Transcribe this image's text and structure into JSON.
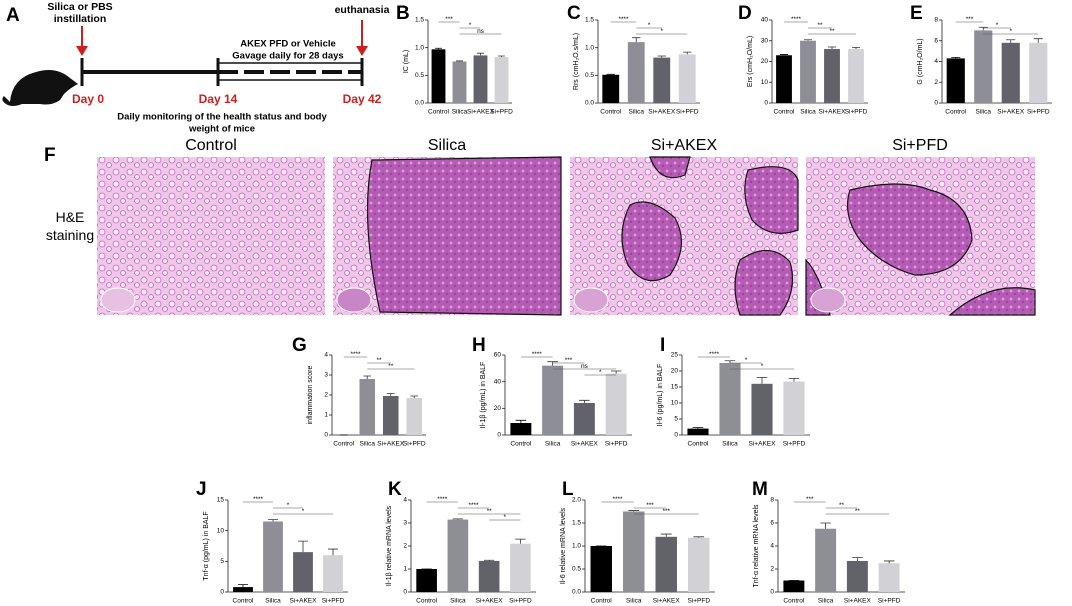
{
  "schematic": {
    "panel": "A",
    "instillation": [
      "Silica or PBS",
      "instillation"
    ],
    "endpoint": "euthanasia",
    "treatment": [
      "AKEX  PFD or Vehicle",
      "Gavage daily for 28 days"
    ],
    "days": [
      "Day 0",
      "Day 14",
      "Day 42"
    ],
    "monitoring": [
      "Daily monitoring of the health status and body",
      "weight of mice"
    ]
  },
  "histology": {
    "panel": "F",
    "groups": [
      "Control",
      "Silica",
      "Si+AKEX",
      "Si+PFD"
    ],
    "stain": "H&E staining"
  },
  "chart_data": [
    {
      "type": "bar",
      "panel": "B",
      "y_label": "IC (mL)",
      "categories": [
        "Control",
        "Silica",
        "Si+AKEX",
        "Si+PFD"
      ],
      "values": [
        0.97,
        0.75,
        0.86,
        0.83
      ],
      "errors": [
        0.02,
        0.01,
        0.04,
        0.02
      ],
      "colors": [
        "#000000",
        "#8e8e96",
        "#62626a",
        "#d2d2d6"
      ],
      "ylim": [
        0,
        1.5
      ],
      "yticks": [
        {
          "value": 0,
          "label": "0.0"
        },
        0.5,
        {
          "value": 1,
          "label": "1.0"
        },
        1.5
      ],
      "significance": [
        "***",
        "*",
        "ns"
      ]
    },
    {
      "type": "bar",
      "panel": "C",
      "y_label": "Rrs (cmH₂O.s/mL)",
      "categories": [
        "Control",
        "Silica",
        "Si+AKEX",
        "Si+PFD"
      ],
      "values": [
        0.51,
        1.1,
        0.82,
        0.88
      ],
      "errors": [
        0.01,
        0.08,
        0.03,
        0.04
      ],
      "colors": [
        "#000000",
        "#8e8e96",
        "#62626a",
        "#d2d2d6"
      ],
      "ylim": [
        0,
        1.5
      ],
      "yticks": [
        {
          "value": 0,
          "label": "0.0"
        },
        0.5,
        {
          "value": 1,
          "label": "1.0"
        },
        1.5
      ],
      "significance": [
        "****",
        "*",
        "*"
      ]
    },
    {
      "type": "bar",
      "panel": "D",
      "y_label": "Ers (cmH₂O/mL)",
      "categories": [
        "Control",
        "Silica",
        "Si+AKEX",
        "Si+PFD"
      ],
      "values": [
        23,
        30,
        26,
        26
      ],
      "errors": [
        0.4,
        0.5,
        1,
        0.8
      ],
      "colors": [
        "#000000",
        "#8e8e96",
        "#62626a",
        "#d2d2d6"
      ],
      "ylim": [
        0,
        40
      ],
      "yticks": [
        0,
        10,
        20,
        30,
        40
      ],
      "significance": [
        "****",
        "**",
        "**"
      ]
    },
    {
      "type": "bar",
      "panel": "E",
      "y_label": "G (cmH₂O/mL)",
      "categories": [
        "Control",
        "Silica",
        "Si+AKEX",
        "Si+PFD"
      ],
      "values": [
        4.3,
        7.0,
        5.8,
        5.8
      ],
      "errors": [
        0.1,
        0.3,
        0.3,
        0.4
      ],
      "colors": [
        "#000000",
        "#8e8e96",
        "#62626a",
        "#d2d2d6"
      ],
      "ylim": [
        0,
        8
      ],
      "yticks": [
        0,
        2,
        4,
        6,
        8
      ],
      "significance": [
        "***",
        "*",
        "*"
      ]
    },
    {
      "type": "bar",
      "panel": "G",
      "y_label": "inflammation score",
      "categories": [
        "Control",
        "Silica",
        "Si+AKEX",
        "Si+PFD"
      ],
      "values": [
        0,
        2.8,
        1.95,
        1.85
      ],
      "errors": [
        0,
        0.15,
        0.12,
        0.1
      ],
      "colors": [
        "#000000",
        "#8e8e96",
        "#62626a",
        "#d2d2d6"
      ],
      "ylim": [
        0,
        4
      ],
      "yticks": [
        0,
        1,
        2,
        3,
        4
      ],
      "significance": [
        "****",
        "**",
        "**"
      ]
    },
    {
      "type": "bar",
      "panel": "H",
      "y_label": "Il-1β (pg/mL) in BALF",
      "categories": [
        "Control",
        "Silica",
        "Si+AKEX",
        "Si+PFD"
      ],
      "values": [
        9,
        52,
        24,
        46
      ],
      "errors": [
        2,
        3,
        2,
        2
      ],
      "colors": [
        "#000000",
        "#8e8e96",
        "#62626a",
        "#d2d2d6"
      ],
      "ylim": [
        0,
        60
      ],
      "yticks": [
        0,
        20,
        40,
        60
      ],
      "significance": [
        "****",
        "***",
        "ns",
        "*"
      ]
    },
    {
      "type": "bar",
      "panel": "I",
      "y_label": "Il-6 (pg/mL) in BALF",
      "categories": [
        "Control",
        "Silica",
        "Si+AKEX",
        "Si+PFD"
      ],
      "values": [
        2,
        22.5,
        16,
        16.7
      ],
      "errors": [
        0.3,
        0.7,
        2,
        1
      ],
      "colors": [
        "#000000",
        "#8e8e96",
        "#62626a",
        "#d2d2d6"
      ],
      "ylim": [
        0,
        25
      ],
      "yticks": [
        0,
        5,
        10,
        15,
        20,
        25
      ],
      "significance": [
        "****",
        "*",
        "*"
      ]
    },
    {
      "type": "bar",
      "panel": "J",
      "y_label": "Tnf-α (pg/mL) in BALF",
      "categories": [
        "Control",
        "Silica",
        "Si+AKEX",
        "Si+PFD"
      ],
      "values": [
        0.8,
        11.5,
        6.5,
        6
      ],
      "errors": [
        0.4,
        0.3,
        1.8,
        1
      ],
      "colors": [
        "#000000",
        "#8e8e96",
        "#62626a",
        "#d2d2d6"
      ],
      "ylim": [
        0,
        15
      ],
      "yticks": [
        0,
        5,
        10,
        15
      ],
      "significance": [
        "****",
        "*",
        "*"
      ]
    },
    {
      "type": "bar",
      "panel": "K",
      "y_label": "Il-1β relative mRNA levels",
      "categories": [
        "Control",
        "Silica",
        "Si+AKEX",
        "Si+PFD"
      ],
      "values": [
        1,
        3.15,
        1.35,
        2.1
      ],
      "errors": [
        0,
        0.03,
        0.03,
        0.2
      ],
      "colors": [
        "#000000",
        "#8e8e96",
        "#62626a",
        "#d2d2d6"
      ],
      "ylim": [
        0,
        4
      ],
      "yticks": [
        0,
        1,
        2,
        3,
        4
      ],
      "significance": [
        "****",
        "****",
        "**",
        "*"
      ]
    },
    {
      "type": "bar",
      "panel": "L",
      "y_label": "Il-6 relative mRNA levels",
      "categories": [
        "Control",
        "Silica",
        "Si+AKEX",
        "Si+PFD"
      ],
      "values": [
        1,
        1.75,
        1.2,
        1.18
      ],
      "errors": [
        0,
        0.02,
        0.06,
        0.02
      ],
      "colors": [
        "#000000",
        "#8e8e96",
        "#62626a",
        "#d2d2d6"
      ],
      "ylim": [
        0,
        2
      ],
      "yticks": [
        {
          "value": 0,
          "label": "0.0"
        },
        0.5,
        {
          "value": 1,
          "label": "1.0"
        },
        1.5,
        {
          "value": 2,
          "label": "2.0"
        }
      ],
      "significance": [
        "****",
        "***",
        "***"
      ]
    },
    {
      "type": "bar",
      "panel": "M",
      "y_label": "Tnf-α relative mRNA levels",
      "categories": [
        "Control",
        "Silica",
        "Si+AKEX",
        "Si+PFD"
      ],
      "values": [
        1,
        5.5,
        2.7,
        2.5
      ],
      "errors": [
        0,
        0.5,
        0.3,
        0.2
      ],
      "colors": [
        "#000000",
        "#8e8e96",
        "#62626a",
        "#d2d2d6"
      ],
      "ylim": [
        0,
        8
      ],
      "yticks": [
        0,
        2,
        4,
        6,
        8
      ],
      "significance": [
        "***",
        "**",
        "**"
      ]
    }
  ]
}
